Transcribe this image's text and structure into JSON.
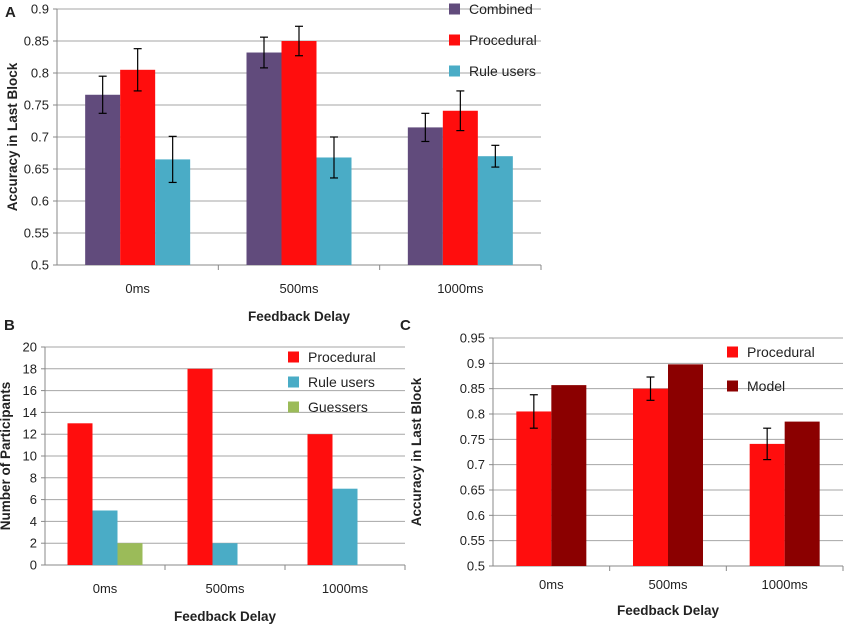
{
  "colors": {
    "combined": "#614b7c",
    "procedural": "#ff0d0d",
    "rule_users": "#4aacc6",
    "guessers": "#9bbb59",
    "model": "#8b0000",
    "grid": "#a6a6a6",
    "axis": "#888888"
  },
  "chart_data": [
    {
      "panel_label": "A",
      "type": "bar",
      "categories": [
        "0ms",
        "500ms",
        "1000ms"
      ],
      "series": [
        {
          "name": "Combined",
          "color_key": "combined",
          "values": [
            0.766,
            0.832,
            0.715
          ],
          "errors": [
            0.029,
            0.024,
            0.022
          ]
        },
        {
          "name": "Procedural",
          "color_key": "procedural",
          "values": [
            0.805,
            0.85,
            0.741
          ],
          "errors": [
            0.033,
            0.023,
            0.031
          ]
        },
        {
          "name": "Rule users",
          "color_key": "rule_users",
          "values": [
            0.665,
            0.668,
            0.67
          ],
          "errors": [
            0.036,
            0.032,
            0.017
          ]
        }
      ],
      "xlabel": "Feedback Delay",
      "ylabel": "Accuracy in Last Block",
      "ylim": [
        0.5,
        0.9
      ],
      "yticks": [
        "0.5",
        "0.55",
        "0.6",
        "0.65",
        "0.7",
        "0.75",
        "0.8",
        "0.85",
        "0.9"
      ],
      "grid": true,
      "legend": "top-right"
    },
    {
      "panel_label": "B",
      "type": "bar",
      "categories": [
        "0ms",
        "500ms",
        "1000ms"
      ],
      "series": [
        {
          "name": "Procedural",
          "color_key": "procedural",
          "values": [
            13,
            18,
            12
          ]
        },
        {
          "name": "Rule users",
          "color_key": "rule_users",
          "values": [
            5,
            2,
            7
          ]
        },
        {
          "name": "Guessers",
          "color_key": "guessers",
          "values": [
            2,
            0,
            0
          ]
        }
      ],
      "xlabel": "Feedback Delay",
      "ylabel": "Number of Participants",
      "ylim": [
        0,
        20
      ],
      "yticks": [
        "0",
        "2",
        "4",
        "6",
        "8",
        "10",
        "12",
        "14",
        "16",
        "18",
        "20"
      ],
      "grid": true,
      "legend": "top-right"
    },
    {
      "panel_label": "C",
      "type": "bar",
      "categories": [
        "0ms",
        "500ms",
        "1000ms"
      ],
      "series": [
        {
          "name": "Procedural",
          "color_key": "procedural",
          "values": [
            0.805,
            0.85,
            0.741
          ],
          "errors": [
            0.033,
            0.023,
            0.031
          ]
        },
        {
          "name": "Model",
          "color_key": "model",
          "values": [
            0.857,
            0.898,
            0.785
          ]
        }
      ],
      "xlabel": "Feedback Delay",
      "ylabel": "Accuracy in Last Block",
      "ylim": [
        0.5,
        0.95
      ],
      "yticks": [
        "0.5",
        "0.55",
        "0.6",
        "0.65",
        "0.7",
        "0.75",
        "0.8",
        "0.85",
        "0.9",
        "0.95"
      ],
      "grid": true,
      "legend": "top-right"
    }
  ]
}
